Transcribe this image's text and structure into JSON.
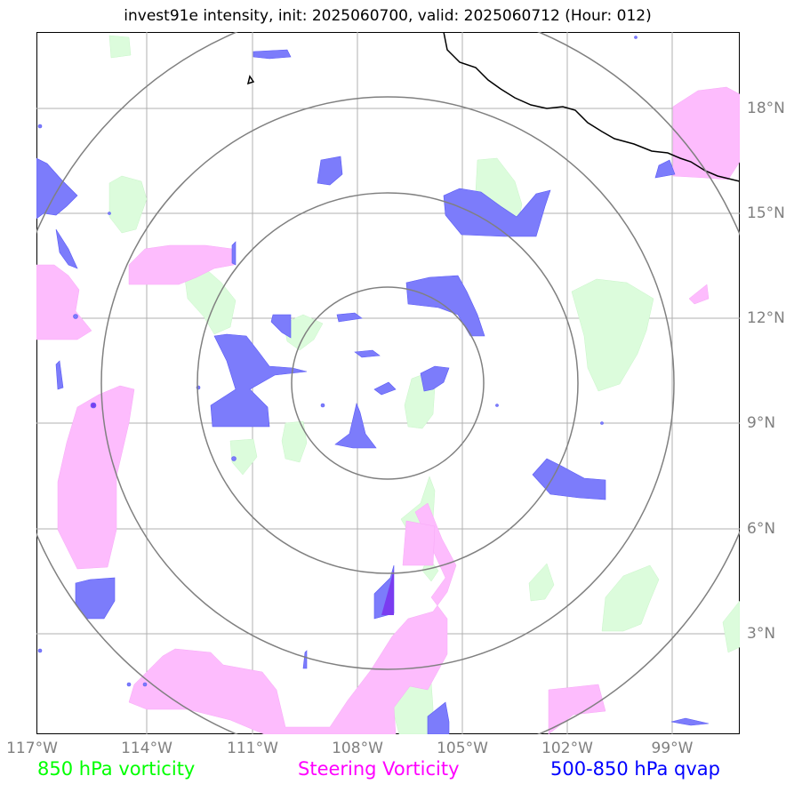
{
  "title": "invest91e intensity, init: 2025060700, valid: 2025060712 (Hour: 012)",
  "x_ticks": [
    "117°W",
    "114°W",
    "111°W",
    "108°W",
    "105°W",
    "102°W",
    "99°W"
  ],
  "y_ticks": [
    "18°N",
    "15°N",
    "12°N",
    "9°N",
    "6°N",
    "3°N"
  ],
  "legend": {
    "item1": "850 hPa vorticity",
    "item2": "Steering Vorticity",
    "item3": "500-850 hPa qvap"
  },
  "colors": {
    "vorticity_850": "#00ff00",
    "steering_vorticity": "#ff00ff",
    "qvap": "#0000ff",
    "green_fill": "#dcfcdc",
    "pink_fill": "#fdbcfd",
    "blue_fill": "#7c7cfb",
    "grid": "#b0b0b0",
    "range_rings": "#808080",
    "coastline": "#000000"
  },
  "map": {
    "lon_range": [
      -118.0,
      -97.6
    ],
    "lat_range": [
      0.3,
      20.2
    ],
    "center": [
      -107.3,
      10.2
    ],
    "range_rings": 4
  }
}
